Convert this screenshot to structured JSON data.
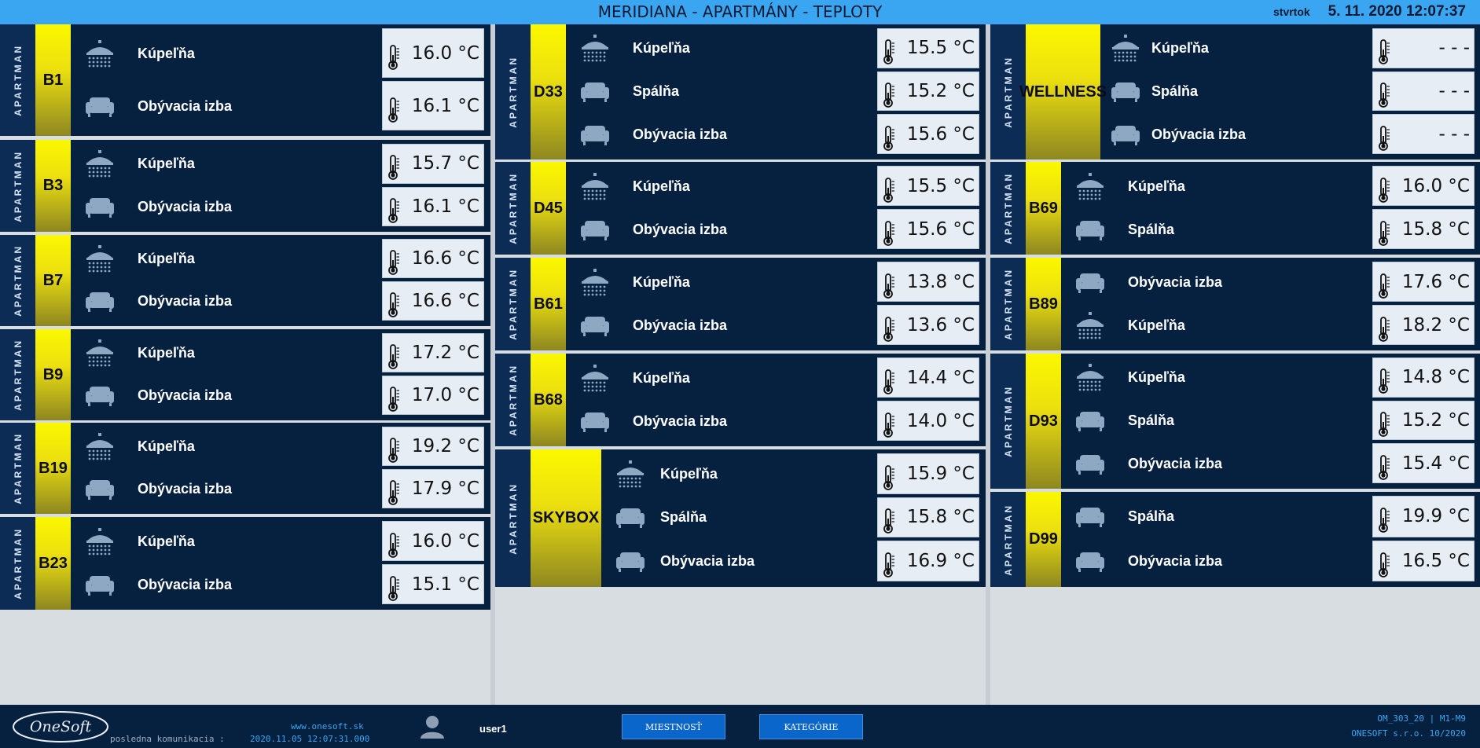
{
  "header": {
    "title": "MERIDIANA - APARTMÁNY - TEPLOTY",
    "day": "stvrtok",
    "datetime": "5. 11. 2020 12:07:37"
  },
  "columns": [
    {
      "apartments": [
        {
          "label": "APARTMAN",
          "code": "B1",
          "rooms": [
            {
              "name": "Kúpeľňa",
              "icon": "shower-icon",
              "temp": "16.0 °C"
            },
            {
              "name": "Obývacia izba",
              "icon": "sofa-icon",
              "temp": "16.1 °C"
            }
          ]
        },
        {
          "label": "APARTMAN",
          "code": "B3",
          "rooms": [
            {
              "name": "Kúpeľňa",
              "icon": "shower-icon",
              "temp": "15.7 °C"
            },
            {
              "name": "Obývacia izba",
              "icon": "sofa-icon",
              "temp": "16.1 °C"
            }
          ]
        },
        {
          "label": "APARTMAN",
          "code": "B7",
          "rooms": [
            {
              "name": "Kúpeľňa",
              "icon": "shower-icon",
              "temp": "16.6 °C"
            },
            {
              "name": "Obývacia izba",
              "icon": "sofa-icon",
              "temp": "16.6 °C"
            }
          ]
        },
        {
          "label": "APARTMAN",
          "code": "B9",
          "rooms": [
            {
              "name": "Kúpeľňa",
              "icon": "shower-icon",
              "temp": "17.2 °C"
            },
            {
              "name": "Obývacia izba",
              "icon": "sofa-icon",
              "temp": "17.0 °C"
            }
          ]
        },
        {
          "label": "APARTMAN",
          "code": "B19",
          "rooms": [
            {
              "name": "Kúpeľňa",
              "icon": "shower-icon",
              "temp": "19.2 °C"
            },
            {
              "name": "Obývacia izba",
              "icon": "sofa-icon",
              "temp": "17.9 °C"
            }
          ]
        },
        {
          "label": "APARTMAN",
          "code": "B23",
          "rooms": [
            {
              "name": "Kúpeľňa",
              "icon": "shower-icon",
              "temp": "16.0 °C"
            },
            {
              "name": "Obývacia izba",
              "icon": "sofa-icon",
              "temp": "15.1 °C"
            }
          ]
        }
      ]
    },
    {
      "apartments": [
        {
          "label": "APARTMAN",
          "code": "D33",
          "rooms": [
            {
              "name": "Kúpeľňa",
              "icon": "shower-icon",
              "temp": "15.5 °C"
            },
            {
              "name": "Spálňa",
              "icon": "sofa-icon",
              "temp": "15.2 °C"
            },
            {
              "name": "Obývacia izba",
              "icon": "sofa-icon",
              "temp": "15.6 °C"
            }
          ]
        },
        {
          "label": "APARTMAN",
          "code": "D45",
          "rooms": [
            {
              "name": "Kúpeľňa",
              "icon": "shower-icon",
              "temp": "15.5 °C"
            },
            {
              "name": "Obývacia izba",
              "icon": "sofa-icon",
              "temp": "15.6 °C"
            }
          ]
        },
        {
          "label": "APARTMAN",
          "code": "B61",
          "rooms": [
            {
              "name": "Kúpeľňa",
              "icon": "shower-icon",
              "temp": "13.8 °C"
            },
            {
              "name": "Obývacia izba",
              "icon": "sofa-icon",
              "temp": "13.6 °C"
            }
          ]
        },
        {
          "label": "APARTMAN",
          "code": "B68",
          "rooms": [
            {
              "name": "Kúpeľňa",
              "icon": "shower-icon",
              "temp": "14.4 °C"
            },
            {
              "name": "Obývacia izba",
              "icon": "sofa-icon",
              "temp": "14.0 °C"
            }
          ]
        },
        {
          "label": "APARTMAN",
          "code": "SKYBOX",
          "rooms": [
            {
              "name": "Kúpeľňa",
              "icon": "shower-icon",
              "temp": "15.9 °C"
            },
            {
              "name": "Spálňa",
              "icon": "sofa-icon",
              "temp": "15.8 °C"
            },
            {
              "name": "Obývacia izba",
              "icon": "sofa-icon",
              "temp": "16.9 °C"
            }
          ]
        }
      ]
    },
    {
      "apartments": [
        {
          "label": "APARTMAN",
          "code": "WELLNESS",
          "rooms": [
            {
              "name": "Kúpeľňa",
              "icon": "shower-icon",
              "temp": "- - -"
            },
            {
              "name": "Spálňa",
              "icon": "sofa-icon",
              "temp": "- - -"
            },
            {
              "name": "Obývacia izba",
              "icon": "sofa-icon",
              "temp": "- - -"
            }
          ]
        },
        {
          "label": "APARTMAN",
          "code": "B69",
          "rooms": [
            {
              "name": "Kúpeľňa",
              "icon": "shower-icon",
              "temp": "16.0 °C"
            },
            {
              "name": "Spálňa",
              "icon": "sofa-icon",
              "temp": "15.8 °C"
            }
          ]
        },
        {
          "label": "APARTMAN",
          "code": "B89",
          "rooms": [
            {
              "name": "Obývacia izba",
              "icon": "sofa-icon",
              "temp": "17.6 °C"
            },
            {
              "name": "Kúpeľňa",
              "icon": "shower-icon",
              "temp": "18.2 °C"
            }
          ]
        },
        {
          "label": "APARTMAN",
          "code": "D93",
          "rooms": [
            {
              "name": "Kúpeľňa",
              "icon": "shower-icon",
              "temp": "14.8 °C"
            },
            {
              "name": "Spálňa",
              "icon": "sofa-icon",
              "temp": "15.2 °C"
            },
            {
              "name": "Obývacia izba",
              "icon": "sofa-icon",
              "temp": "15.4 °C"
            }
          ]
        },
        {
          "label": "APARTMAN",
          "code": "D99",
          "rooms": [
            {
              "name": "Spálňa",
              "icon": "sofa-icon",
              "temp": "19.9 °C"
            },
            {
              "name": "Obývacia izba",
              "icon": "sofa-icon",
              "temp": "16.5 °C"
            }
          ]
        }
      ]
    }
  ],
  "footer": {
    "logo_text": "OneSoft",
    "last_comm_label": "posledna komunikacia :",
    "url": "www.onesoft.sk",
    "last_comm_value": "2020.11.05 12:07:31.000",
    "user": "user1",
    "btn_room": "MIESTNOSŤ",
    "btn_category": "KATEGÓRIE",
    "version_1": "OM_303_20 | M1-M9",
    "version_2": "ONESOFT s.r.o. 10/2020"
  },
  "colors": {
    "header_bg": "#3aa6f2",
    "panel_bg": "#06203f",
    "label_strip": "#0d2c55",
    "code_yellow": "#fbf800",
    "temp_box": "#e6edf4",
    "icon": "#8ea7c2"
  }
}
